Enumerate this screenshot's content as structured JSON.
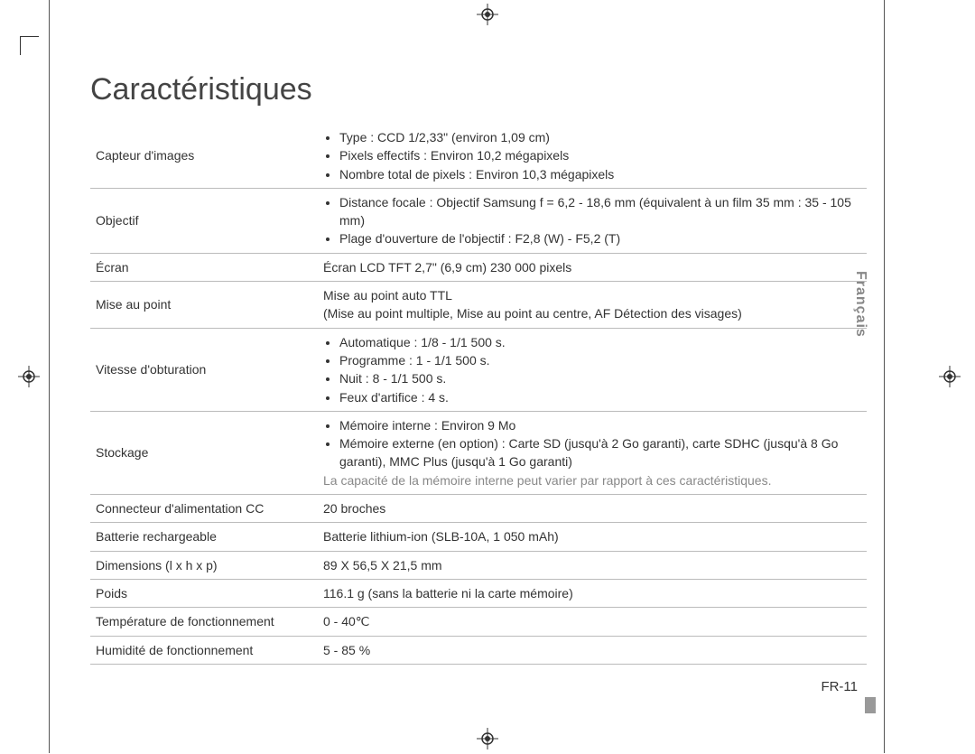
{
  "page": {
    "title": "Caractéristiques",
    "page_number": "FR-11",
    "side_tab": "Français"
  },
  "specs": {
    "rows": [
      {
        "label": "Capteur d'images",
        "bullets": [
          "Type : CCD 1/2,33\" (environ 1,09 cm)",
          "Pixels effectifs : Environ 10,2 mégapixels",
          "Nombre total de pixels : Environ 10,3 mégapixels"
        ]
      },
      {
        "label": "Objectif",
        "bullets": [
          "Distance focale : Objectif Samsung f = 6,2 - 18,6 mm (équivalent à un film 35 mm : 35 - 105 mm)",
          "Plage d'ouverture de l'objectif : F2,8 (W) - F5,2 (T)"
        ]
      },
      {
        "label": "Écran",
        "value": "Écran LCD TFT 2,7\" (6,9 cm) 230 000 pixels"
      },
      {
        "label": "Mise au point",
        "value": "Mise au point auto TTL\n(Mise au point multiple, Mise au point au centre, AF Détection des visages)"
      },
      {
        "label": "Vitesse d'obturation",
        "bullets": [
          "Automatique : 1/8 - 1/1 500 s.",
          "Programme : 1 - 1/1 500 s.",
          "Nuit : 8 - 1/1 500 s.",
          "Feux d'artifice : 4 s."
        ]
      },
      {
        "label": "Stockage",
        "bullets": [
          "Mémoire interne : Environ 9 Mo",
          "Mémoire externe (en option) : Carte SD (jusqu'à 2 Go garanti), carte SDHC (jusqu'à 8 Go garanti), MMC Plus (jusqu'à 1 Go garanti)"
        ],
        "note": "La capacité de la mémoire interne peut varier par rapport à ces caractéristiques."
      },
      {
        "label": "Connecteur d'alimentation CC",
        "value": "20 broches"
      },
      {
        "label": "Batterie rechargeable",
        "value": "Batterie lithium-ion (SLB-10A, 1 050 mAh)"
      },
      {
        "label": "Dimensions (l x h x p)",
        "value": "89 X 56,5 X 21,5 mm"
      },
      {
        "label": "Poids",
        "value": "116.1 g (sans la batterie ni la carte mémoire)"
      },
      {
        "label": "Température de fonctionnement",
        "value": "0 - 40℃"
      },
      {
        "label": "Humidité de fonctionnement",
        "value": "5 - 85 %"
      }
    ]
  }
}
